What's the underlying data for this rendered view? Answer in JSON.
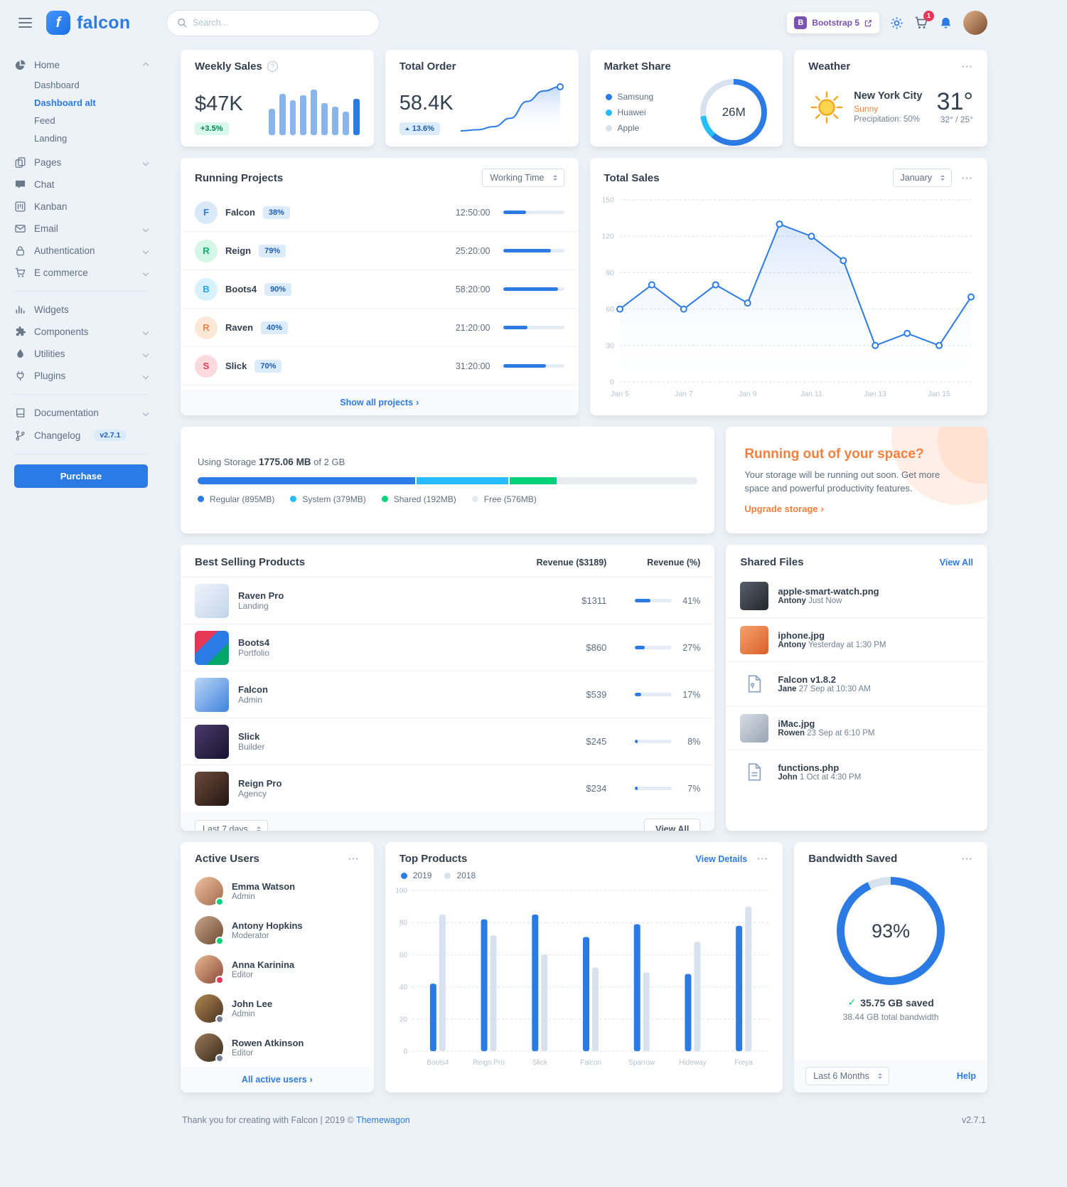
{
  "brand": {
    "name": "falcon"
  },
  "icons": {
    "question": "?",
    "ellipsis": "···",
    "chevron_right": "›",
    "check": "✓",
    "bootstrap_b": "B",
    "logo_f": "f"
  },
  "topbar": {
    "search_placeholder": "Search...",
    "bootstrap_badge": "Bootstrap 5",
    "cart_count": "1"
  },
  "sidebar": {
    "home": {
      "label": "Home",
      "children": [
        "Dashboard",
        "Dashboard alt",
        "Feed",
        "Landing"
      ]
    },
    "items": [
      {
        "label": "Pages"
      },
      {
        "label": "Chat"
      },
      {
        "label": "Kanban"
      },
      {
        "label": "Email"
      },
      {
        "label": "Authentication"
      },
      {
        "label": "E commerce"
      },
      {
        "label": "Widgets"
      },
      {
        "label": "Components"
      },
      {
        "label": "Utilities"
      },
      {
        "label": "Plugins"
      },
      {
        "label": "Documentation"
      },
      {
        "label": "Changelog"
      }
    ],
    "changelog_badge": "v2.7.1",
    "purchase_label": "Purchase"
  },
  "weekly_sales": {
    "title": "Weekly Sales",
    "value": "$47K",
    "badge": "+3.5%"
  },
  "total_order": {
    "title": "Total Order",
    "value": "58.4K",
    "badge": "13.6%"
  },
  "market_share": {
    "title": "Market Share"
  },
  "weather": {
    "title": "Weather",
    "city": "New York City",
    "condition": "Sunny",
    "precipitation": "Precipitation: 50%",
    "temp": "31°",
    "high_low": "32° / 25°"
  },
  "running_projects": {
    "title": "Running Projects",
    "select_value": "Working Time",
    "rows": [
      {
        "initial": "F",
        "name": "Falcon",
        "pct_label": "38%",
        "progress": 38,
        "time": "12:50:00"
      },
      {
        "initial": "R",
        "name": "Reign",
        "pct_label": "79%",
        "progress": 79,
        "time": "25:20:00"
      },
      {
        "initial": "B",
        "name": "Boots4",
        "pct_label": "90%",
        "progress": 90,
        "time": "58:20:00"
      },
      {
        "initial": "R",
        "name": "Raven",
        "pct_label": "40%",
        "progress": 40,
        "time": "21:20:00"
      },
      {
        "initial": "S",
        "name": "Slick",
        "pct_label": "70%",
        "progress": 70,
        "time": "31:20:00"
      }
    ],
    "footer_link": "Show all projects"
  },
  "total_sales": {
    "title": "Total Sales",
    "select_value": "January"
  },
  "storage": {
    "label": "Using Storage",
    "used": "1775.06 MB",
    "of_total": "of 2 GB",
    "legend": [
      {
        "label": "Regular (895MB)"
      },
      {
        "label": "System (379MB)"
      },
      {
        "label": "Shared (192MB)"
      },
      {
        "label": "Free (576MB)"
      }
    ]
  },
  "space_card": {
    "title": "Running out of your space?",
    "body": "Your storage will be running out soon. Get more space and powerful productivity features.",
    "link": "Upgrade storage"
  },
  "best_selling": {
    "title": "Best Selling Products",
    "col_revenue": "Revenue ($3189)",
    "col_pct": "Revenue (%)",
    "rows": [
      {
        "name": "Raven Pro",
        "category": "Landing",
        "revenue": "$1311",
        "pct": 41,
        "pct_label": "41%"
      },
      {
        "name": "Boots4",
        "category": "Portfolio",
        "revenue": "$860",
        "pct": 27,
        "pct_label": "27%"
      },
      {
        "name": "Falcon",
        "category": "Admin",
        "revenue": "$539",
        "pct": 17,
        "pct_label": "17%"
      },
      {
        "name": "Slick",
        "category": "Builder",
        "revenue": "$245",
        "pct": 8,
        "pct_label": "8%"
      },
      {
        "name": "Reign Pro",
        "category": "Agency",
        "revenue": "$234",
        "pct": 7,
        "pct_label": "7%"
      }
    ],
    "select_value": "Last 7 days",
    "view_all": "View All"
  },
  "shared_files": {
    "title": "Shared Files",
    "view_all": "View All",
    "files": [
      {
        "name": "apple-smart-watch.png",
        "user": "Antony",
        "time": "Just Now"
      },
      {
        "name": "iphone.jpg",
        "user": "Antony",
        "time": "Yesterday at 1:30 PM"
      },
      {
        "name": "Falcon v1.8.2",
        "user": "Jane",
        "time": "27 Sep at 10:30 AM"
      },
      {
        "name": "iMac.jpg",
        "user": "Rowen",
        "time": "23 Sep at 6:10 PM"
      },
      {
        "name": "functions.php",
        "user": "John",
        "time": "1 Oct at 4:30 PM"
      }
    ]
  },
  "active_users": {
    "title": "Active Users",
    "users": [
      {
        "name": "Emma Watson",
        "role": "Admin",
        "status_color": "#00d27a"
      },
      {
        "name": "Antony Hopkins",
        "role": "Moderator",
        "status_color": "#00d27a"
      },
      {
        "name": "Anna Karinina",
        "role": "Editor",
        "status_color": "#e63757"
      },
      {
        "name": "John Lee",
        "role": "Admin",
        "status_color": "#748194"
      },
      {
        "name": "Rowen Atkinson",
        "role": "Editor",
        "status_color": "#748194"
      }
    ],
    "footer_link": "All active users"
  },
  "top_products": {
    "title": "Top Products",
    "view_details": "View Details"
  },
  "bandwidth": {
    "title": "Bandwidth Saved",
    "saved": "35.75 GB saved",
    "total": "38.44 GB total bandwidth",
    "select_value": "Last 6 Months",
    "help": "Help"
  },
  "footer": {
    "text": "Thank you for creating with Falcon | 2019 © ",
    "brand": "Themewagon",
    "version": "v2.7.1"
  },
  "colors": {
    "primary": "#2c7be5",
    "success": "#00d27a",
    "info": "#27bcfd",
    "warning": "#f5803e",
    "danger": "#e63757",
    "background": "#edf2f9"
  },
  "chart_data": [
    {
      "id": "weekly-sales-bars",
      "type": "bar",
      "values": [
        45,
        70,
        60,
        68,
        78,
        55,
        48,
        40,
        62
      ],
      "bar_color": "#8ab5ec",
      "last_bar_color": "#2c7be5"
    },
    {
      "id": "total-order-spark",
      "type": "area",
      "values": [
        18,
        19,
        22,
        30,
        46,
        56,
        60
      ],
      "line_color": "#2c7be5"
    },
    {
      "id": "market-share-donut",
      "type": "pie",
      "center_label": "26M",
      "series": [
        {
          "name": "Samsung",
          "value": 16,
          "color": "#2c7be5"
        },
        {
          "name": "Huawei",
          "value": 3,
          "color": "#27bcfd"
        },
        {
          "name": "Apple",
          "value": 7,
          "color": "#d8e2ef"
        }
      ]
    },
    {
      "id": "total-sales-line",
      "type": "line",
      "x": [
        "Jan 5",
        "Jan 6",
        "Jan 7",
        "Jan 8",
        "Jan 9",
        "Jan 10",
        "Jan 11",
        "Jan 12",
        "Jan 13",
        "Jan 14",
        "Jan 15",
        "Jan 16"
      ],
      "x_ticks": [
        "Jan 5",
        "Jan 7",
        "Jan 9",
        "Jan 11",
        "Jan 13",
        "Jan 15"
      ],
      "values": [
        60,
        80,
        60,
        80,
        65,
        130,
        120,
        100,
        30,
        40,
        30,
        70
      ],
      "y_ticks": [
        0,
        30,
        60,
        90,
        120,
        150
      ],
      "ylim": [
        0,
        150
      ],
      "line_color": "#2c7be5"
    },
    {
      "id": "storage-bar",
      "type": "bar",
      "segments": [
        {
          "name": "Regular",
          "value": 895,
          "color": "#2c7be5"
        },
        {
          "name": "System",
          "value": 379,
          "color": "#27bcfd"
        },
        {
          "name": "Shared",
          "value": 192,
          "color": "#00d27a"
        },
        {
          "name": "Free",
          "value": 576,
          "color": "#e6eaf1"
        }
      ]
    },
    {
      "id": "top-products-bars",
      "type": "bar",
      "categories": [
        "Boots4",
        "Reign Pro",
        "Slick",
        "Falcon",
        "Sparrow",
        "Hideway",
        "Freya"
      ],
      "series": [
        {
          "name": "2019",
          "color": "#2c7be5",
          "values": [
            42,
            82,
            85,
            71,
            79,
            48,
            78
          ]
        },
        {
          "name": "2018",
          "color": "#d8e2ef",
          "values": [
            85,
            72,
            60,
            52,
            49,
            68,
            90
          ]
        }
      ],
      "y_ticks": [
        0,
        20,
        40,
        60,
        80,
        100
      ],
      "ylim": [
        0,
        100
      ]
    },
    {
      "id": "bandwidth-donut",
      "type": "pie",
      "center_label": "93%",
      "series": [
        {
          "name": "saved",
          "value": 93,
          "color": "#2c7be5"
        },
        {
          "name": "remaining",
          "value": 7,
          "color": "#d8e2ef"
        }
      ]
    }
  ]
}
